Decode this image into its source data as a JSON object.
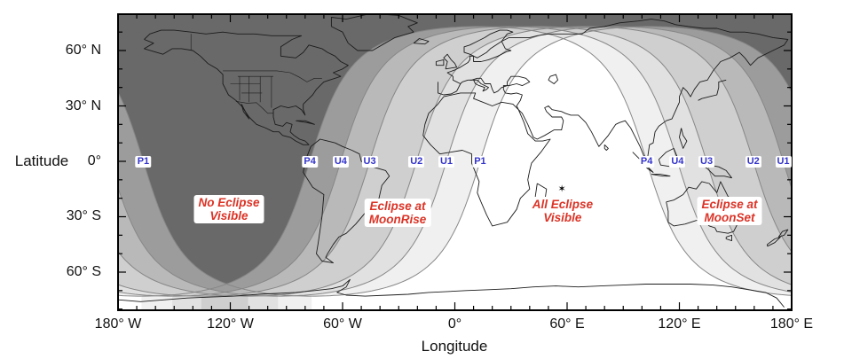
{
  "figure": {
    "xlabel": "Longitude",
    "ylabel": "Latitude"
  },
  "chart_data": {
    "type": "map-contour",
    "projection": "equirectangular",
    "description": "Lunar eclipse visibility map: shaded zones of eclipse visibility with moonrise/moonset contact curves",
    "lon_axis": {
      "label": "Longitude",
      "range": [
        -180,
        180
      ],
      "major_tick_deg": 60,
      "minor_tick_deg": 10,
      "ticks": [
        {
          "label": "180° W",
          "lon": -180
        },
        {
          "label": "120° W",
          "lon": -120
        },
        {
          "label": "60° W",
          "lon": -60
        },
        {
          "label": "0°",
          "lon": 0
        },
        {
          "label": "60° E",
          "lon": 60
        },
        {
          "label": "120° E",
          "lon": 120
        },
        {
          "label": "180° E",
          "lon": 180
        }
      ]
    },
    "lat_axis": {
      "label": "Latitude",
      "range": [
        -80.6,
        79.7
      ],
      "major_tick_deg": 30,
      "minor_tick_deg": 10,
      "ticks": [
        {
          "label": "60° N",
          "lat": 60
        },
        {
          "label": "30° N",
          "lat": 30
        },
        {
          "label": "0°",
          "lat": 0
        },
        {
          "label": "30° S",
          "lat": -30
        },
        {
          "label": "60° S",
          "lat": -60
        }
      ]
    },
    "sub_lunar_lat": -17,
    "contact_curves": [
      {
        "label": "P1",
        "sub_lunar_lon": 103.5
      },
      {
        "label": "U1",
        "sub_lunar_lon": 85.5
      },
      {
        "label": "U2",
        "sub_lunar_lon": 69.5
      },
      {
        "label": "U3",
        "sub_lunar_lon": 44.5
      },
      {
        "label": "U4",
        "sub_lunar_lon": 29
      },
      {
        "label": "P4",
        "sub_lunar_lon": 12.5
      }
    ],
    "zone_colors": {
      "no_eclipse": "#696969",
      "bands": [
        "#9c9c9c",
        "#b9b9b9",
        "#cfcfcf",
        "#e1e1e1",
        "#f0f0f0"
      ],
      "all_eclipse": "#ffffff"
    },
    "contact_label_color": "#3434cc",
    "annotation_color": "#dc3326",
    "annotations": [
      {
        "id": "no-eclipse",
        "lines": [
          "No Eclipse",
          "Visible"
        ],
        "lon": -120.7,
        "lat": -25.9
      },
      {
        "id": "eclipse-moonrise",
        "lines": [
          "Eclipse at",
          "MoonRise"
        ],
        "lon": -30.6,
        "lat": -27.8
      },
      {
        "id": "all-eclipse",
        "lines": [
          "All Eclipse",
          "Visible"
        ],
        "lon": 57.6,
        "lat": -26.9
      },
      {
        "id": "eclipse-moonset",
        "lines": [
          "Eclipse at",
          "MoonSet"
        ],
        "lon": 146.8,
        "lat": -26.9
      }
    ],
    "moon_zenith_marker": {
      "glyph": "✶",
      "lon": 57.2,
      "lat": -14.9
    }
  }
}
